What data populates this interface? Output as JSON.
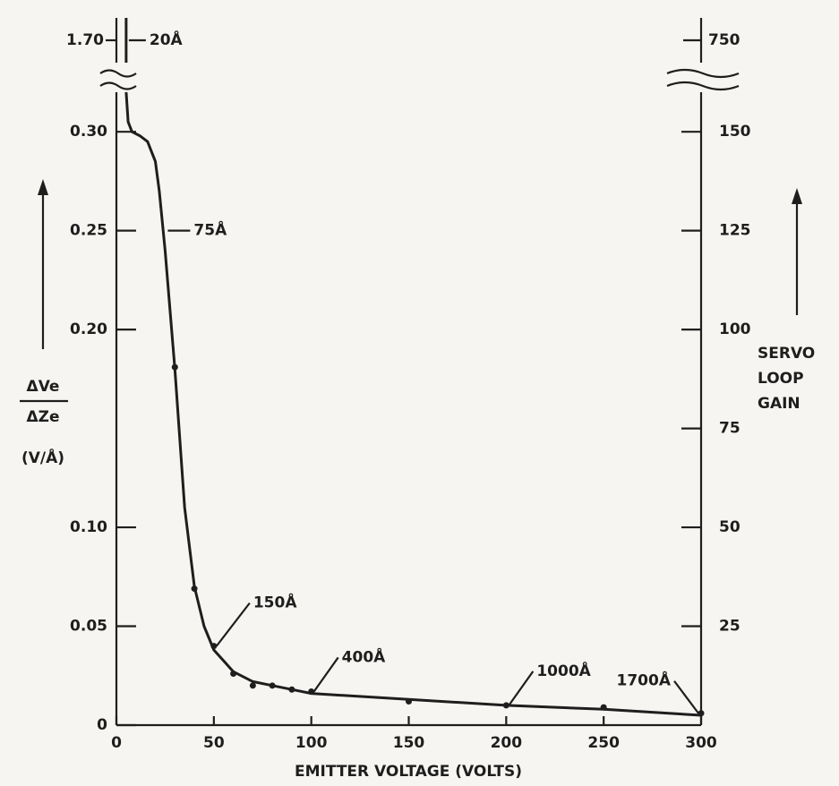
{
  "chart_data": {
    "type": "line",
    "x_label": "EMITTER VOLTAGE (VOLTS)",
    "y_label": [
      "ΔVe",
      "ΔZe",
      "(V/Å)"
    ],
    "y2_label": [
      "SERVO",
      "LOOP",
      "GAIN"
    ],
    "xlim": [
      0,
      300
    ],
    "xticks": [
      0,
      50,
      100,
      150,
      200,
      250,
      300
    ],
    "ylim": [
      0,
      0.32
    ],
    "yticks": [
      0,
      0.05,
      {
        "value": 0.1,
        "label": "0.10"
      },
      {
        "value": 0.2,
        "label": "0.20"
      },
      0.25,
      {
        "value": 0.3,
        "label": "0.30"
      }
    ],
    "y2lim": [
      0,
      160
    ],
    "y2ticks": [
      25,
      50,
      75,
      100,
      125,
      150
    ],
    "upper_ylim": [
      1.65,
      1.75
    ],
    "upper_yticks": [
      {
        "value": 1.7,
        "label": "1.70"
      }
    ],
    "upper_y2lim": [
      725,
      775
    ],
    "upper_y2ticks": [
      750
    ],
    "color": "#1e1e1e",
    "series": [
      {
        "x": [
          5,
          6,
          8,
          12,
          16,
          20,
          22,
          25,
          30,
          35,
          40,
          45,
          50,
          60,
          70,
          80,
          90,
          100,
          150,
          200,
          250,
          300
        ],
        "values": [
          0.32,
          0.305,
          0.3,
          0.298,
          0.295,
          0.285,
          0.27,
          0.24,
          0.18,
          0.11,
          0.07,
          0.05,
          0.038,
          0.027,
          0.022,
          0.02,
          0.018,
          0.016,
          0.013,
          0.01,
          0.008,
          0.005
        ]
      }
    ],
    "upper_series": {
      "x": [
        5,
        5
      ],
      "values": [
        1.65,
        1.75
      ]
    },
    "markers": {
      "x": [
        30,
        40,
        50,
        60,
        70,
        80,
        90,
        100,
        150,
        200,
        250,
        300
      ],
      "values": [
        0.181,
        0.069,
        0.04,
        0.026,
        0.02,
        0.02,
        0.018,
        0.017,
        0.012,
        0.01,
        0.009,
        0.006
      ]
    },
    "annotations": [
      {
        "text": "20Å",
        "x": 5,
        "y": 1.7,
        "panel": "upper"
      },
      {
        "text": "75Å",
        "x": 25,
        "y": 0.25,
        "panel": "main"
      },
      {
        "text": "150Å",
        "x": 50,
        "y": 0.04,
        "panel": "main"
      },
      {
        "text": "400Å",
        "x": 100,
        "y": 0.017,
        "panel": "main"
      },
      {
        "text": "1000Å",
        "x": 200,
        "y": 0.01,
        "panel": "main"
      },
      {
        "text": "1700Å",
        "x": 300,
        "y": 0.006,
        "panel": "main"
      }
    ]
  }
}
